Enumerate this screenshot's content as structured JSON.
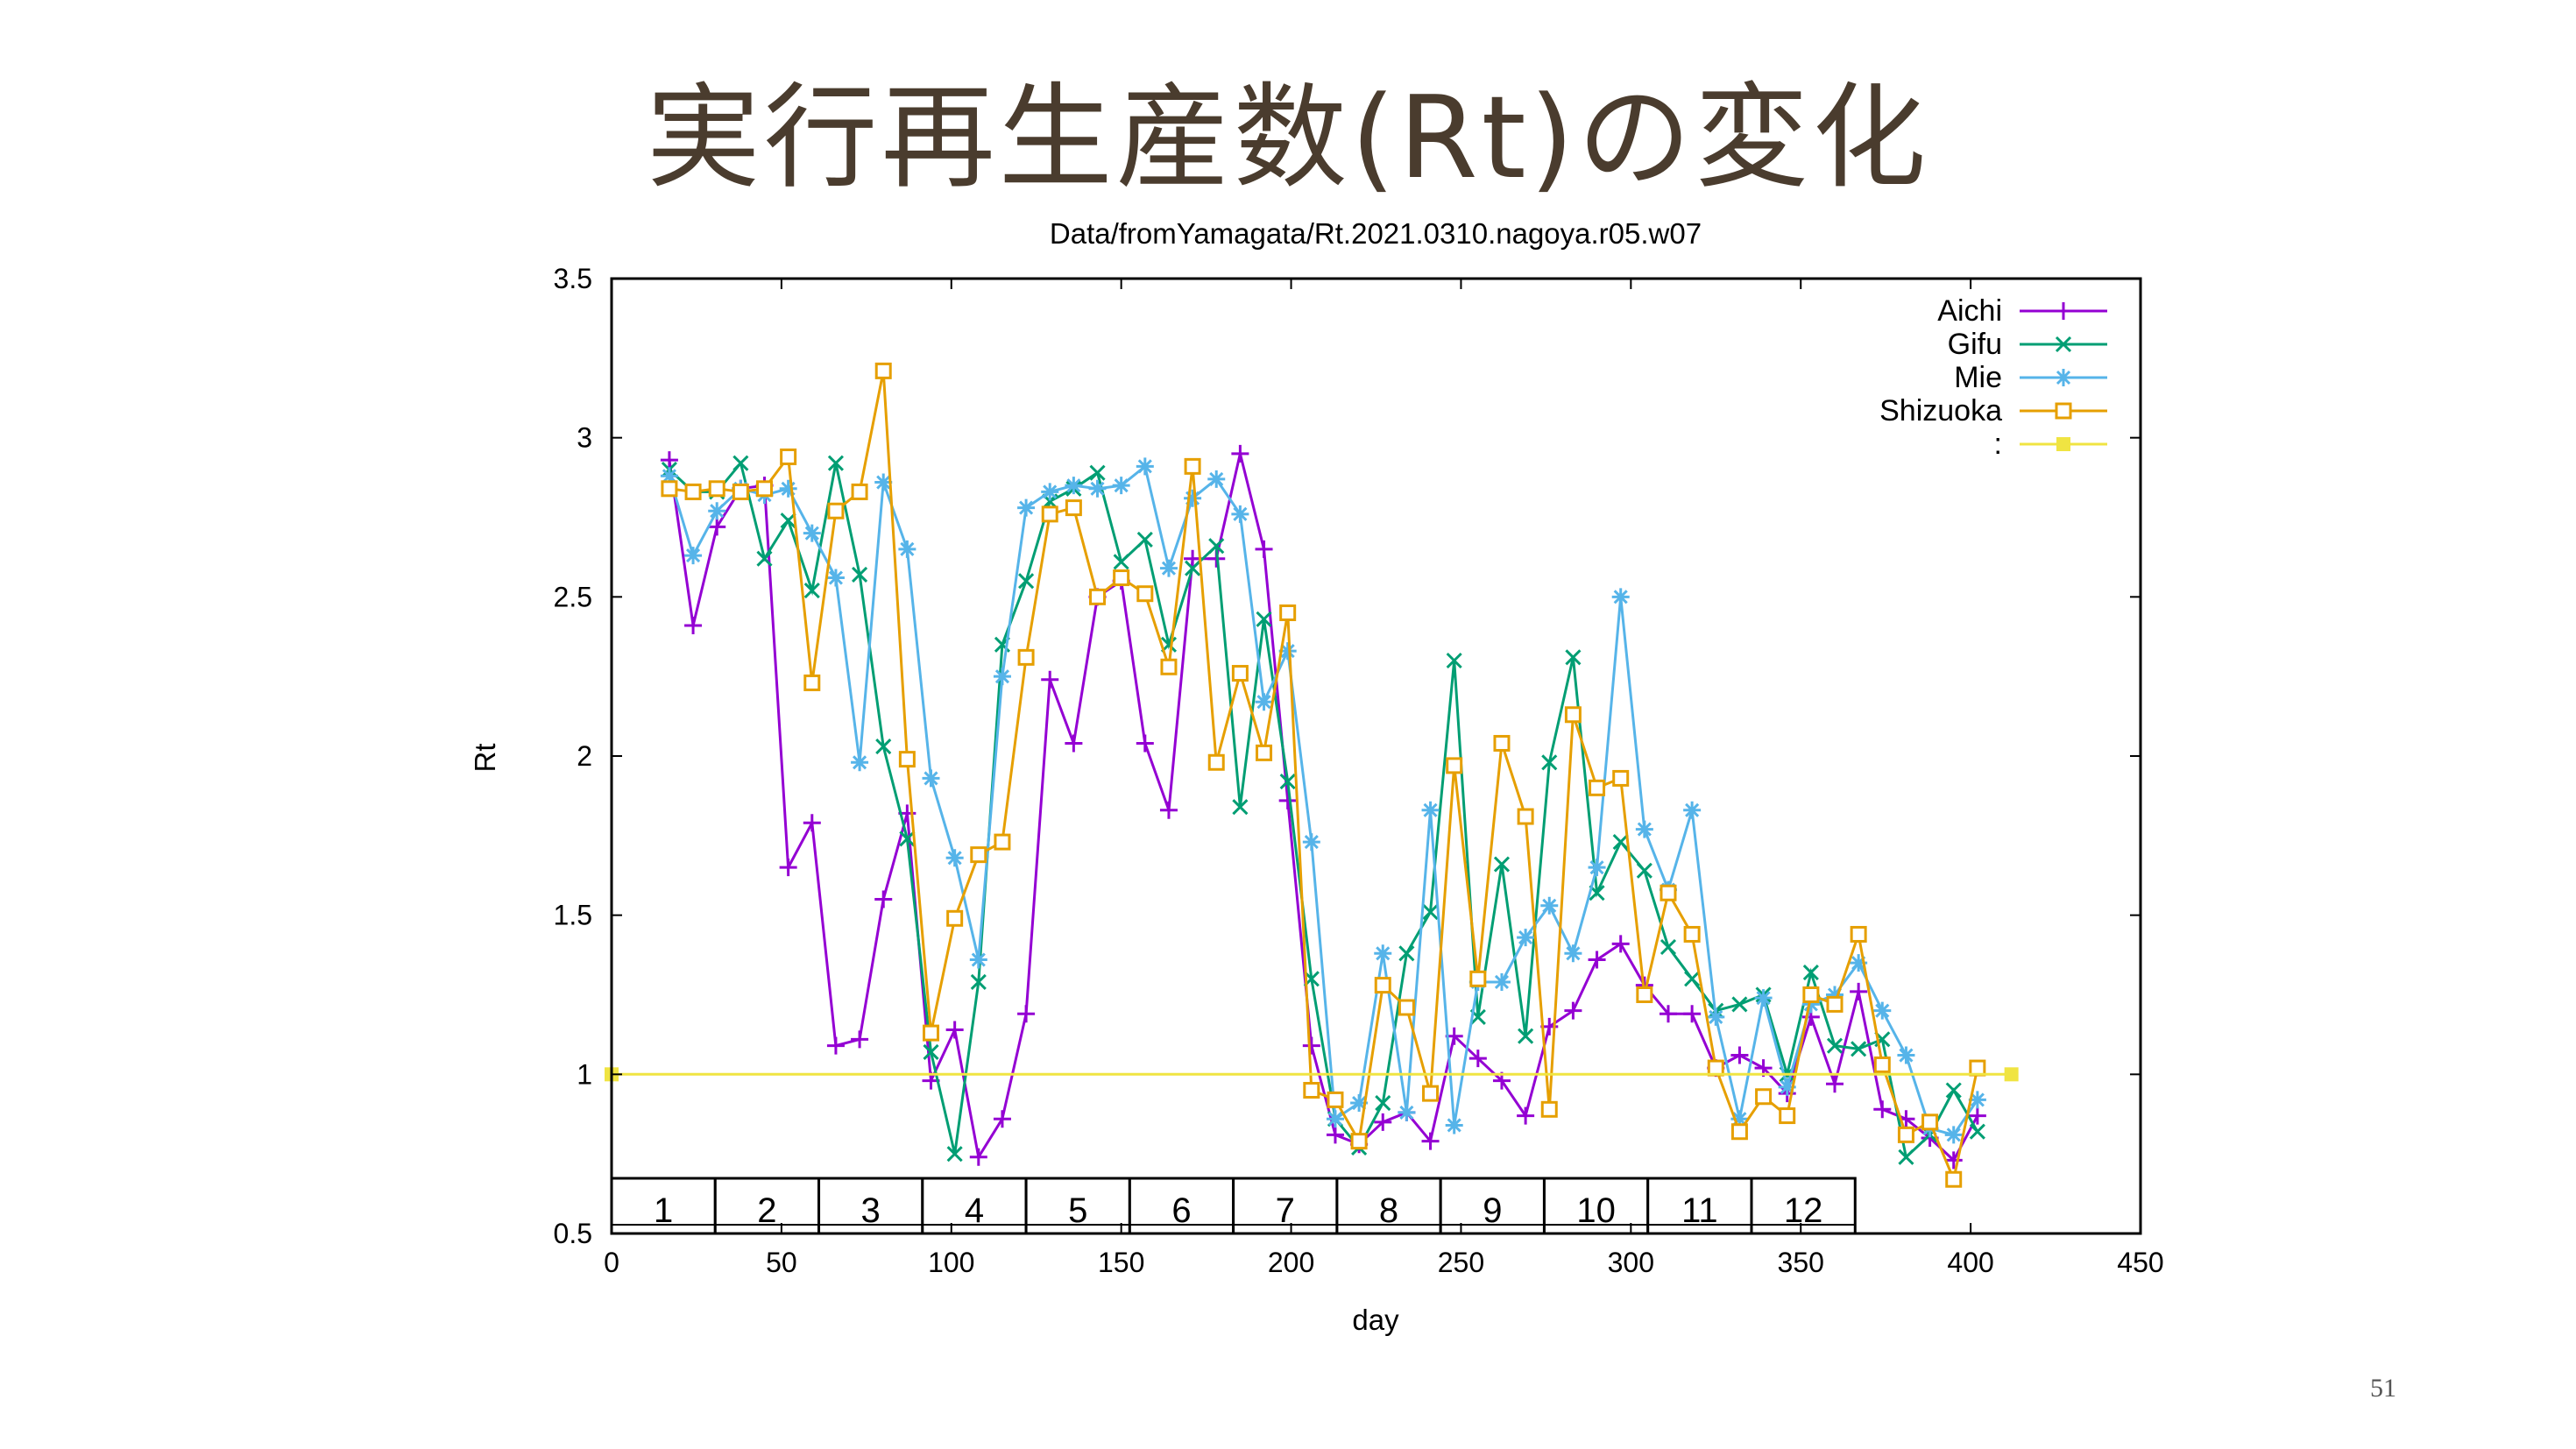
{
  "slide": {
    "title": "実行再生産数(Rt)の変化",
    "page_number": "51"
  },
  "chart_data": {
    "type": "line",
    "title": "Data/fromYamagata/Rt.2021.0310.nagoya.r05.w07",
    "xlabel": "day",
    "ylabel": "Rt",
    "xlim": [
      0,
      450
    ],
    "ylim": [
      0.5,
      3.5
    ],
    "xticks": [
      0,
      50,
      100,
      150,
      200,
      250,
      300,
      350,
      400,
      450
    ],
    "yticks": [
      0.5,
      1,
      1.5,
      2,
      2.5,
      3,
      3.5
    ],
    "grid": false,
    "legend_position": "top-right",
    "series": [
      {
        "name": "Aichi",
        "color": "#9400d3",
        "marker": "plus",
        "x": [
          17,
          24,
          31,
          38,
          45,
          52,
          59,
          66,
          73,
          80,
          87,
          94,
          101,
          108,
          115,
          122,
          129,
          136,
          143,
          150,
          157,
          164,
          171,
          178,
          185,
          192,
          199,
          206,
          213,
          220,
          227,
          234,
          241,
          248,
          255,
          262,
          269,
          276,
          283,
          290,
          297,
          304,
          311,
          318,
          325,
          332,
          339,
          346,
          353,
          360,
          367,
          374,
          381,
          388,
          395,
          402
        ],
        "y": [
          2.93,
          2.41,
          2.72,
          2.84,
          2.85,
          1.65,
          1.79,
          1.09,
          1.11,
          1.55,
          1.82,
          0.98,
          1.14,
          0.74,
          0.86,
          1.19,
          2.24,
          2.04,
          2.5,
          2.55,
          2.04,
          1.83,
          2.62,
          2.62,
          2.95,
          2.65,
          1.86,
          1.09,
          0.81,
          0.78,
          0.85,
          0.88,
          0.79,
          1.12,
          1.05,
          0.98,
          0.87,
          1.15,
          1.2,
          1.36,
          1.41,
          1.28,
          1.19,
          1.19,
          1.02,
          1.06,
          1.02,
          0.94,
          1.18,
          0.97,
          1.26,
          0.89,
          0.86,
          0.8,
          0.73,
          0.87
        ]
      },
      {
        "name": "Gifu",
        "color": "#009e73",
        "marker": "cross",
        "x": [
          17,
          24,
          31,
          38,
          45,
          52,
          59,
          66,
          73,
          80,
          87,
          94,
          101,
          108,
          115,
          122,
          129,
          136,
          143,
          150,
          157,
          164,
          171,
          178,
          185,
          192,
          199,
          206,
          213,
          220,
          227,
          234,
          241,
          248,
          255,
          262,
          269,
          276,
          283,
          290,
          297,
          304,
          311,
          318,
          325,
          332,
          339,
          346,
          353,
          360,
          367,
          374,
          381,
          388,
          395,
          402
        ],
        "y": [
          2.9,
          2.83,
          2.83,
          2.92,
          2.62,
          2.74,
          2.52,
          2.92,
          2.57,
          2.03,
          1.74,
          1.07,
          0.75,
          1.29,
          2.35,
          2.55,
          2.8,
          2.84,
          2.89,
          2.61,
          2.68,
          2.35,
          2.59,
          2.66,
          1.84,
          2.43,
          1.92,
          1.3,
          0.86,
          0.77,
          0.91,
          1.38,
          1.51,
          2.3,
          1.18,
          1.66,
          1.12,
          1.98,
          2.31,
          1.57,
          1.73,
          1.64,
          1.4,
          1.3,
          1.2,
          1.22,
          1.25,
          1.0,
          1.32,
          1.09,
          1.08,
          1.11,
          0.74,
          0.81,
          0.95,
          0.82
        ]
      },
      {
        "name": "Mie",
        "color": "#56b4e9",
        "marker": "star",
        "x": [
          17,
          24,
          31,
          38,
          45,
          52,
          59,
          66,
          73,
          80,
          87,
          94,
          101,
          108,
          115,
          122,
          129,
          136,
          143,
          150,
          157,
          164,
          171,
          178,
          185,
          192,
          199,
          206,
          213,
          220,
          227,
          234,
          241,
          248,
          255,
          262,
          269,
          276,
          283,
          290,
          297,
          304,
          311,
          318,
          325,
          332,
          339,
          346,
          353,
          360,
          367,
          374,
          381,
          388,
          395,
          402
        ],
        "y": [
          2.88,
          2.63,
          2.77,
          2.84,
          2.82,
          2.84,
          2.7,
          2.56,
          1.98,
          2.86,
          2.65,
          1.93,
          1.68,
          1.36,
          2.25,
          2.78,
          2.83,
          2.85,
          2.84,
          2.85,
          2.91,
          2.59,
          2.81,
          2.87,
          2.76,
          2.17,
          2.33,
          1.73,
          0.86,
          0.91,
          1.38,
          0.88,
          1.83,
          0.84,
          1.29,
          1.29,
          1.43,
          1.53,
          1.38,
          1.65,
          2.5,
          1.77,
          1.58,
          1.83,
          1.18,
          0.86,
          1.24,
          0.96,
          1.22,
          1.25,
          1.35,
          1.2,
          1.06,
          0.83,
          0.81,
          0.92
        ]
      },
      {
        "name": "Shizuoka",
        "color": "#e69f00",
        "marker": "square",
        "x": [
          17,
          24,
          31,
          38,
          45,
          52,
          59,
          66,
          73,
          80,
          87,
          94,
          101,
          108,
          115,
          122,
          129,
          136,
          143,
          150,
          157,
          164,
          171,
          178,
          185,
          192,
          199,
          206,
          213,
          220,
          227,
          234,
          241,
          248,
          255,
          262,
          269,
          276,
          283,
          290,
          297,
          304,
          311,
          318,
          325,
          332,
          339,
          346,
          353,
          360,
          367,
          374,
          381,
          388,
          395,
          402
        ],
        "y": [
          2.84,
          2.83,
          2.84,
          2.83,
          2.84,
          2.94,
          2.23,
          2.77,
          2.83,
          3.21,
          1.99,
          1.13,
          1.49,
          1.69,
          1.73,
          2.31,
          2.76,
          2.78,
          2.5,
          2.56,
          2.51,
          2.28,
          2.91,
          1.98,
          2.26,
          2.01,
          2.45,
          0.95,
          0.92,
          0.79,
          1.28,
          1.21,
          0.94,
          1.97,
          1.3,
          2.04,
          1.81,
          0.89,
          2.13,
          1.9,
          1.93,
          1.25,
          1.57,
          1.44,
          1.02,
          0.82,
          0.93,
          0.87,
          1.25,
          1.22,
          1.44,
          1.03,
          0.81,
          0.85,
          0.67,
          1.02
        ]
      },
      {
        "name": ":",
        "color": "#f0e442",
        "marker": "filled-square",
        "x": [
          0,
          412
        ],
        "y": [
          1,
          1
        ]
      }
    ],
    "period_labels": [
      "1",
      "2",
      "3",
      "4",
      "5",
      "6",
      "7",
      "8",
      "9",
      "10",
      "11",
      "12"
    ]
  }
}
